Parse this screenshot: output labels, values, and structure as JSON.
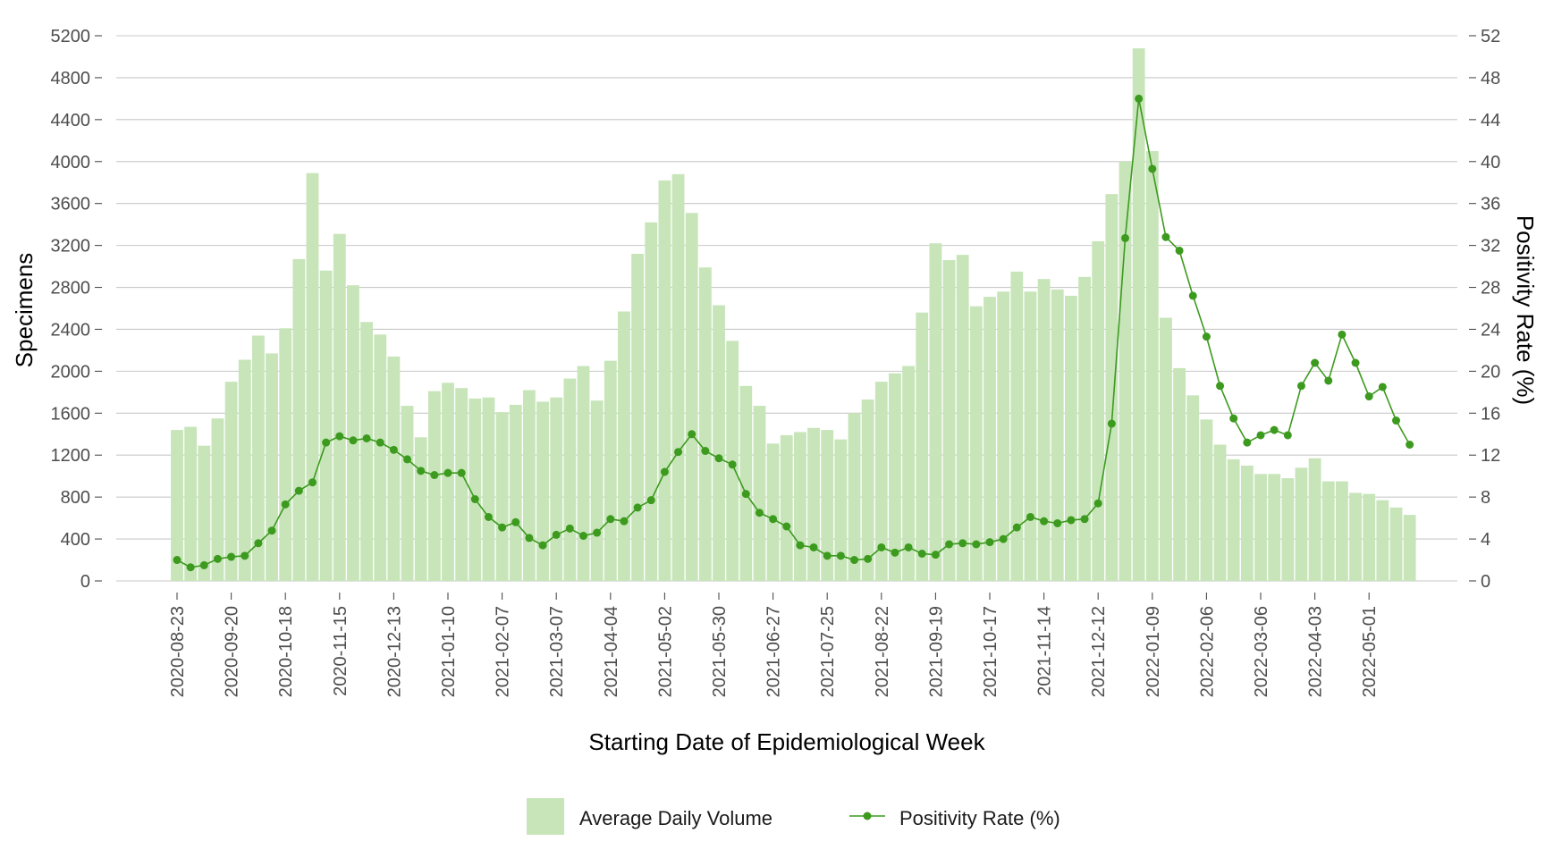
{
  "chart_data": {
    "type": "bar",
    "xlabel": "Starting Date of Epidemiological Week",
    "ylabel_left": "Specimens",
    "ylabel_right": "Positivity Rate (%)",
    "ylim_left": [
      0,
      5200
    ],
    "ylim_right": [
      0,
      52
    ],
    "yticks_left": [
      0,
      400,
      800,
      1200,
      1600,
      2000,
      2400,
      2800,
      3200,
      3600,
      4000,
      4400,
      4800,
      5200
    ],
    "yticks_right": [
      0,
      4,
      8,
      12,
      16,
      20,
      24,
      28,
      32,
      36,
      40,
      44,
      48,
      52
    ],
    "grid": "horizontal",
    "legend_position": "bottom",
    "x_tick_labels": [
      "2020-08-23",
      "2020-09-20",
      "2020-10-18",
      "2020-11-15",
      "2020-12-13",
      "2021-01-10",
      "2021-02-07",
      "2021-03-07",
      "2021-04-04",
      "2021-05-02",
      "2021-05-30",
      "2021-06-27",
      "2021-07-25",
      "2021-08-22",
      "2021-09-19",
      "2021-10-17",
      "2021-11-14",
      "2021-12-12",
      "2022-01-09",
      "2022-02-06",
      "2022-03-06",
      "2022-04-03",
      "2022-05-01"
    ],
    "series": [
      {
        "name": "Average Daily Volume",
        "kind": "bar",
        "color": "#c7e5b9",
        "values": [
          1440,
          1470,
          1290,
          1550,
          1900,
          2110,
          2340,
          2170,
          2410,
          3070,
          3890,
          2960,
          3310,
          2820,
          2470,
          2350,
          2140,
          1670,
          1370,
          1810,
          1890,
          1840,
          1740,
          1750,
          1610,
          1680,
          1820,
          1710,
          1750,
          1930,
          2050,
          1720,
          2100,
          2570,
          3120,
          3420,
          3820,
          3880,
          3510,
          2990,
          2630,
          2290,
          1860,
          1670,
          1310,
          1390,
          1420,
          1460,
          1440,
          1350,
          1600,
          1730,
          1900,
          1980,
          2050,
          2560,
          3220,
          3060,
          3110,
          2620,
          2710,
          2760,
          2950,
          2760,
          2880,
          2780,
          2720,
          2900,
          3240,
          3690,
          4000,
          5080,
          4100,
          2510,
          2030,
          1770,
          1540,
          1300,
          1160,
          1100,
          1020,
          1020,
          980,
          1080,
          1170,
          950,
          950,
          840,
          830,
          770,
          700,
          630
        ]
      },
      {
        "name": "Positivity Rate (%)",
        "kind": "line",
        "color": "#3c9a1e",
        "values": [
          2.0,
          1.3,
          1.5,
          2.1,
          2.3,
          2.4,
          3.6,
          4.8,
          7.3,
          8.6,
          9.4,
          13.2,
          13.8,
          13.4,
          13.6,
          13.2,
          12.5,
          11.6,
          10.5,
          10.1,
          10.3,
          10.3,
          7.8,
          6.1,
          5.1,
          5.6,
          4.1,
          3.4,
          4.4,
          5.0,
          4.3,
          4.6,
          5.9,
          5.7,
          7.0,
          7.7,
          10.4,
          12.3,
          14.0,
          12.4,
          11.7,
          11.1,
          8.3,
          6.5,
          5.9,
          5.2,
          3.4,
          3.2,
          2.4,
          2.4,
          2.0,
          2.1,
          3.2,
          2.7,
          3.2,
          2.6,
          2.5,
          3.5,
          3.6,
          3.5,
          3.7,
          4.0,
          5.1,
          6.1,
          5.7,
          5.5,
          5.8,
          5.9,
          7.4,
          15.0,
          32.7,
          46.0,
          39.3,
          32.8,
          31.5,
          27.2,
          23.3,
          18.6,
          15.5,
          13.2,
          13.9,
          14.4,
          13.9,
          18.6,
          20.8,
          19.1,
          23.5,
          20.8,
          17.6,
          18.5,
          15.3,
          13.0
        ]
      }
    ]
  }
}
